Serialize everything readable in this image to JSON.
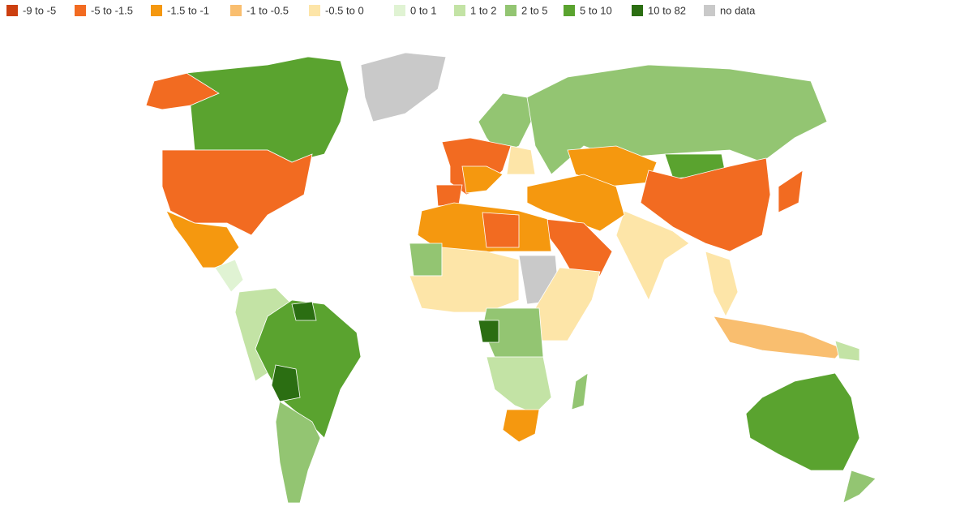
{
  "legend": {
    "items": [
      {
        "label": "-9 to -5",
        "color": "#cc3f10"
      },
      {
        "label": "-5 to -1.5",
        "color": "#f26b21"
      },
      {
        "label": "-1.5 to -1",
        "color": "#f5980f"
      },
      {
        "label": "-1 to -0.5",
        "color": "#f9be6f"
      },
      {
        "label": "-0.5 to 0",
        "color": "#fde5a8"
      },
      {
        "label": "0 to 1",
        "color": "#e0f3d3"
      },
      {
        "label": "1 to 2",
        "color": "#c3e3a5"
      },
      {
        "label": "2 to 5",
        "color": "#93c572"
      },
      {
        "label": "5 to 10",
        "color": "#5aa32f"
      },
      {
        "label": "10 to 82",
        "color": "#2b6e12"
      },
      {
        "label": "no data",
        "color": "#c9c9c9"
      }
    ]
  }
}
